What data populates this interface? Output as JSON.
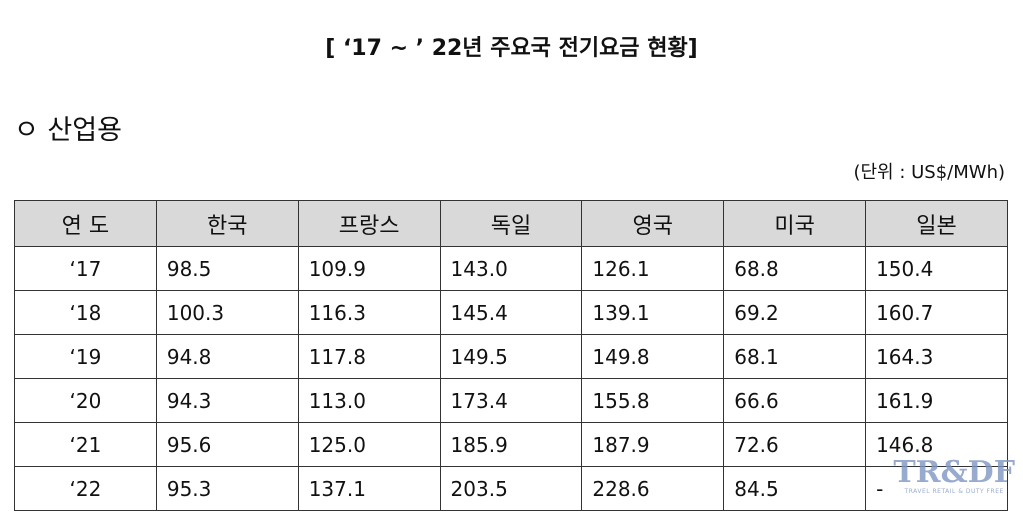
{
  "header": {
    "title": "[ ‘17 ~ ’ 22년 주요국 전기요금 현황]"
  },
  "section": {
    "label": "ㅇ 산업용",
    "unit": "(단위 : US$/MWh)"
  },
  "table": {
    "columns": [
      "연 도",
      "한국",
      "프랑스",
      "독일",
      "영국",
      "미국",
      "일본"
    ],
    "rows": [
      [
        "‘17",
        "98.5",
        "109.9",
        "143.0",
        "126.1",
        "68.8",
        "150.4"
      ],
      [
        "‘18",
        "100.3",
        "116.3",
        "145.4",
        "139.1",
        "69.2",
        "160.7"
      ],
      [
        "‘19",
        "94.8",
        "117.8",
        "149.5",
        "149.8",
        "68.1",
        "164.3"
      ],
      [
        "‘20",
        "94.3",
        "113.0",
        "173.4",
        "155.8",
        "66.6",
        "161.9"
      ],
      [
        "‘21",
        "95.6",
        "125.0",
        "185.9",
        "187.9",
        "72.6",
        "146.8"
      ],
      [
        "‘22",
        "95.3",
        "137.1",
        "203.5",
        "228.6",
        "84.5",
        "-"
      ]
    ]
  },
  "watermark": {
    "logo": "TR&DF",
    "tagline": "TRAVEL RETAIL & DUTY FREE"
  }
}
